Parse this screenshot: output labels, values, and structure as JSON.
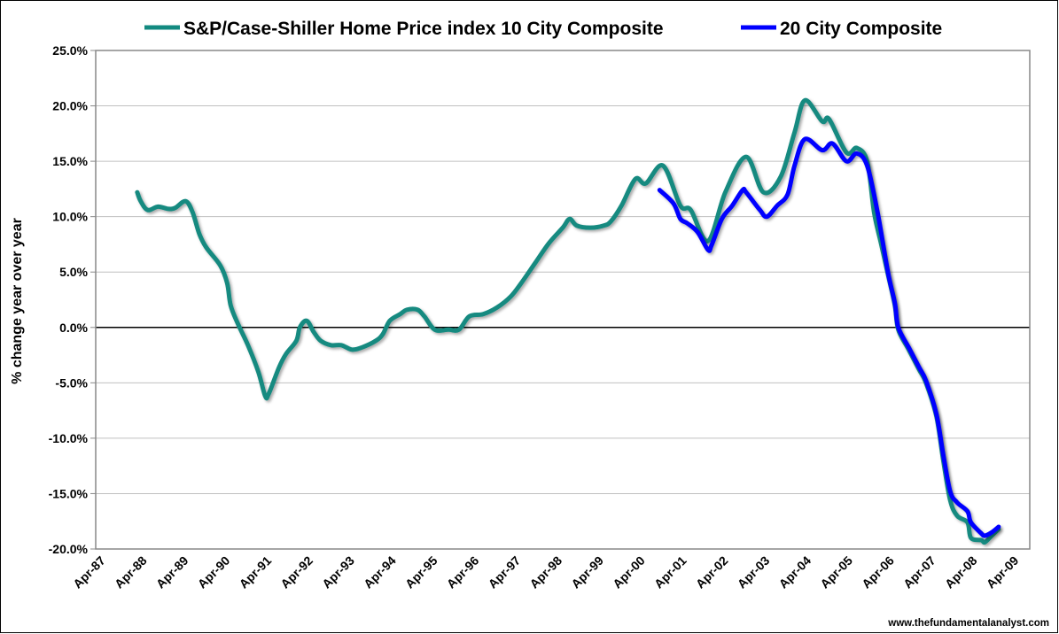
{
  "chart_data": {
    "type": "line",
    "title": "",
    "xlabel": "",
    "ylabel": "% change year over year",
    "ylim": [
      -20,
      25
    ],
    "xlim": [
      "Jan-87",
      "Jul-09"
    ],
    "y_ticks": [
      "25.0%",
      "20.0%",
      "15.0%",
      "10.0%",
      "5.0%",
      "0.0%",
      "-5.0%",
      "-10.0%",
      "-15.0%",
      "-20.0%"
    ],
    "y_tick_values": [
      25,
      20,
      15,
      10,
      5,
      0,
      -5,
      -10,
      -15,
      -20
    ],
    "x_ticks": [
      "Apr-87",
      "Apr-88",
      "Apr-89",
      "Apr-90",
      "Apr-91",
      "Apr-92",
      "Apr-93",
      "Apr-94",
      "Apr-95",
      "Apr-96",
      "Apr-97",
      "Apr-98",
      "Apr-99",
      "Apr-00",
      "Apr-01",
      "Apr-02",
      "Apr-03",
      "Apr-04",
      "Apr-05",
      "Apr-06",
      "Apr-07",
      "Apr-08",
      "Apr-09"
    ],
    "grid": true,
    "legend_placement": "top",
    "series": [
      {
        "name": "S&P/Case-Shiller Home Price index 10 City Composite",
        "color": "#138a80",
        "x": [
          "Jan-88",
          "Feb-88",
          "Apr-88",
          "Jul-88",
          "Oct-88",
          "Dec-88",
          "Mar-89",
          "May-89",
          "Jul-89",
          "Sep-89",
          "Jan-90",
          "Mar-90",
          "Apr-90",
          "Jun-90",
          "Sep-90",
          "Dec-90",
          "Feb-91",
          "Mar-91",
          "Jun-91",
          "Aug-91",
          "Nov-91",
          "Dec-91",
          "Feb-92",
          "Apr-92",
          "Jun-92",
          "Sep-92",
          "Dec-92",
          "Mar-93",
          "Jun-93",
          "Oct-93",
          "Dec-93",
          "Feb-94",
          "May-94",
          "Jul-94",
          "Oct-94",
          "Dec-94",
          "Mar-95",
          "Jul-95",
          "Oct-95",
          "Jan-96",
          "May-96",
          "Sep-96",
          "Jan-97",
          "Apr-97",
          "Aug-97",
          "Dec-97",
          "Apr-98",
          "Jun-98",
          "Aug-98",
          "Dec-98",
          "Apr-99",
          "Jun-99",
          "Sep-99",
          "Jan-00",
          "Apr-00",
          "Sep-00",
          "Feb-01",
          "May-01",
          "Oct-01",
          "Mar-02",
          "Sep-02",
          "Feb-03",
          "Jul-03",
          "Nov-03",
          "Feb-04",
          "Jul-04",
          "Sep-04",
          "Feb-05",
          "May-05",
          "Aug-05",
          "Oct-05",
          "Dec-05",
          "Feb-06",
          "Apr-06",
          "May-06",
          "Aug-06",
          "Nov-06",
          "Jan-07",
          "Apr-07",
          "Jun-07",
          "Aug-07",
          "Oct-07",
          "Jan-08",
          "Feb-08",
          "May-08",
          "Jun-08",
          "Aug-08",
          "Oct-08"
        ],
        "values": [
          12.2,
          11.4,
          10.6,
          10.9,
          10.7,
          10.8,
          11.4,
          10.4,
          8.4,
          7.2,
          5.6,
          4.0,
          2.0,
          0.4,
          -1.6,
          -4.0,
          -6.2,
          -6.0,
          -3.6,
          -2.4,
          -1.2,
          0.0,
          0.6,
          -0.4,
          -1.2,
          -1.6,
          -1.6,
          -2.0,
          -1.8,
          -1.2,
          -0.6,
          0.6,
          1.2,
          1.6,
          1.6,
          1.0,
          -0.2,
          -0.2,
          -0.2,
          1.0,
          1.2,
          1.8,
          2.8,
          4.0,
          5.8,
          7.6,
          9.0,
          9.8,
          9.2,
          9.0,
          9.2,
          9.6,
          11.0,
          13.4,
          13.0,
          14.6,
          11.0,
          10.6,
          7.8,
          12.2,
          15.4,
          12.2,
          13.6,
          17.6,
          20.5,
          18.6,
          18.8,
          15.8,
          16.2,
          15.0,
          10.4,
          7.6,
          4.8,
          2.0,
          -0.2,
          -2.0,
          -3.8,
          -5.0,
          -8.0,
          -12.0,
          -15.6,
          -17.0,
          -17.6,
          -19.0,
          -19.2,
          -19.4,
          -18.8,
          -18.2
        ]
      },
      {
        "name": "20 City Composite",
        "color": "#0000ff",
        "x": [
          "Aug-00",
          "Dec-00",
          "Feb-01",
          "Apr-01",
          "Jul-01",
          "Oct-01",
          "Nov-01",
          "Feb-02",
          "May-02",
          "Aug-02",
          "Sep-02",
          "Jan-03",
          "Mar-03",
          "Jun-03",
          "Sep-03",
          "Nov-03",
          "Feb-04",
          "Jul-04",
          "Oct-04",
          "Feb-05",
          "May-05",
          "Aug-05",
          "Nov-05",
          "Feb-06",
          "Apr-06",
          "May-06",
          "Aug-06",
          "Nov-06",
          "Jan-07",
          "Apr-07",
          "Jun-07",
          "Aug-07",
          "Oct-07",
          "Jan-08",
          "Feb-08",
          "May-08",
          "Jun-08",
          "Aug-08",
          "Oct-08"
        ],
        "values": [
          12.4,
          11.2,
          9.8,
          9.4,
          8.6,
          7.0,
          7.4,
          9.8,
          11.0,
          12.4,
          12.2,
          10.6,
          10.0,
          11.0,
          12.0,
          14.6,
          17.0,
          16.0,
          16.6,
          15.0,
          15.7,
          14.6,
          10.4,
          5.0,
          2.2,
          0.0,
          -1.8,
          -3.6,
          -4.8,
          -7.8,
          -11.5,
          -14.8,
          -15.8,
          -16.6,
          -17.6,
          -18.6,
          -18.8,
          -18.5,
          -18.0
        ]
      }
    ]
  },
  "watermark": "www.thefundamentalanalyst.com"
}
